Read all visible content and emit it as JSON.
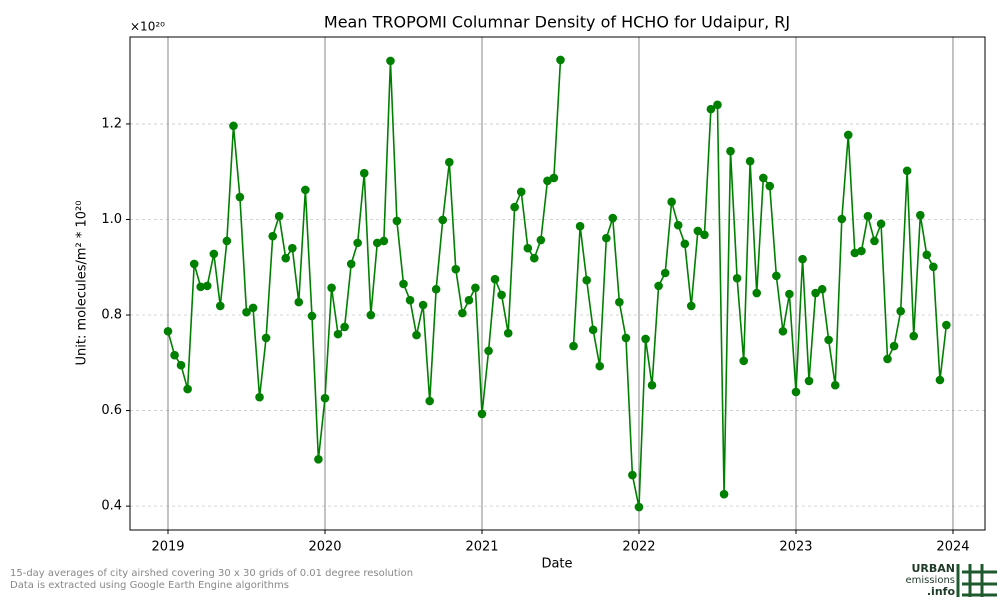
{
  "chart_data": {
    "type": "line",
    "title": "Mean TROPOMI Columnar Density of HCHO for Udaipur, RJ",
    "x_label": "Date",
    "y_label": "Unit: molecules/m² * 10²⁰",
    "y_offset_label": "×10²⁰",
    "xlim": [
      2018.758,
      2024.204
    ],
    "xticks": [
      2019,
      2020,
      2021,
      2022,
      2023,
      2024
    ],
    "ylim": [
      0.35,
      1.382
    ],
    "yticks": [
      0.4,
      0.6,
      0.8,
      {
        "value": 1,
        "label": "1.0"
      },
      1.2
    ],
    "grid": true,
    "x": [
      2019.0,
      2019.042,
      2019.083,
      2019.125,
      2019.167,
      2019.208,
      2019.25,
      2019.292,
      2019.333,
      2019.375,
      2019.417,
      2019.458,
      2019.5,
      2019.542,
      2019.583,
      2019.625,
      2019.667,
      2019.708,
      2019.75,
      2019.792,
      2019.833,
      2019.875,
      2019.917,
      2019.958,
      2020.0,
      2020.042,
      2020.083,
      2020.125,
      2020.167,
      2020.208,
      2020.25,
      2020.292,
      2020.333,
      2020.375,
      2020.417,
      2020.458,
      2020.5,
      2020.542,
      2020.583,
      2020.625,
      2020.667,
      2020.708,
      2020.75,
      2020.792,
      2020.833,
      2020.875,
      2020.917,
      2020.958,
      2021.0,
      2021.042,
      2021.083,
      2021.125,
      2021.167,
      2021.208,
      2021.25,
      2021.292,
      2021.333,
      2021.375,
      2021.417,
      2021.458,
      2021.5,
      2021.542,
      2021.583,
      2021.625,
      2021.667,
      2021.708,
      2021.75,
      2021.792,
      2021.833,
      2021.875,
      2021.917,
      2021.958,
      2022.0,
      2022.042,
      2022.083,
      2022.125,
      2022.167,
      2022.208,
      2022.25,
      2022.292,
      2022.333,
      2022.375,
      2022.417,
      2022.458,
      2022.5,
      2022.542,
      2022.583,
      2022.625,
      2022.667,
      2022.708,
      2022.75,
      2022.792,
      2022.833,
      2022.875,
      2022.917,
      2022.958,
      2023.0,
      2023.042,
      2023.083,
      2023.125,
      2023.167,
      2023.208,
      2023.25,
      2023.292,
      2023.333,
      2023.375,
      2023.417,
      2023.458,
      2023.5,
      2023.542,
      2023.583,
      2023.625,
      2023.667,
      2023.708,
      2023.75,
      2023.792,
      2023.833,
      2023.875,
      2023.917,
      2023.958
    ],
    "series": [
      {
        "color": "#008000",
        "values": [
          0.766,
          0.716,
          0.695,
          0.645,
          0.907,
          0.859,
          0.861,
          0.928,
          0.819,
          0.955,
          1.196,
          1.047,
          0.806,
          0.815,
          0.628,
          0.752,
          0.965,
          1.007,
          0.919,
          0.94,
          0.827,
          1.062,
          0.798,
          0.498,
          0.626,
          0.857,
          0.76,
          0.775,
          0.907,
          0.951,
          1.097,
          0.8,
          0.951,
          0.955,
          1.332,
          0.997,
          0.865,
          0.831,
          0.758,
          0.821,
          0.62,
          0.854,
          0.999,
          1.12,
          0.896,
          0.804,
          0.831,
          0.857,
          0.593,
          0.725,
          0.875,
          0.842,
          0.762,
          1.026,
          1.058,
          0.94,
          0.919,
          0.957,
          1.081,
          1.087,
          1.334,
          null,
          0.735,
          0.986,
          0.873,
          0.769,
          0.693,
          0.961,
          1.003,
          0.827,
          0.752,
          0.465,
          0.398,
          0.75,
          0.653,
          0.861,
          0.888,
          1.037,
          0.988,
          0.949,
          0.819,
          0.976,
          0.968,
          1.231,
          1.24,
          0.425,
          1.143,
          0.877,
          0.704,
          1.122,
          0.846,
          1.087,
          1.07,
          0.882,
          0.766,
          0.844,
          0.639,
          0.917,
          0.662,
          0.846,
          0.854,
          0.748,
          0.653,
          1.001,
          1.177,
          0.93,
          0.934,
          1.007,
          0.955,
          0.991,
          0.708,
          0.735,
          0.808,
          1.102,
          0.756,
          1.009,
          0.926,
          0.901,
          0.664,
          0.779
        ]
      }
    ]
  },
  "footnotes": [
    "15-day averages of city airshed covering 30 x 30 grids of 0.01 degree resolution",
    "Data is extracted using Google Earth Engine algorithms"
  ],
  "logo": {
    "line1": "URBAN",
    "line2": "emissions",
    "line3": ".info"
  }
}
